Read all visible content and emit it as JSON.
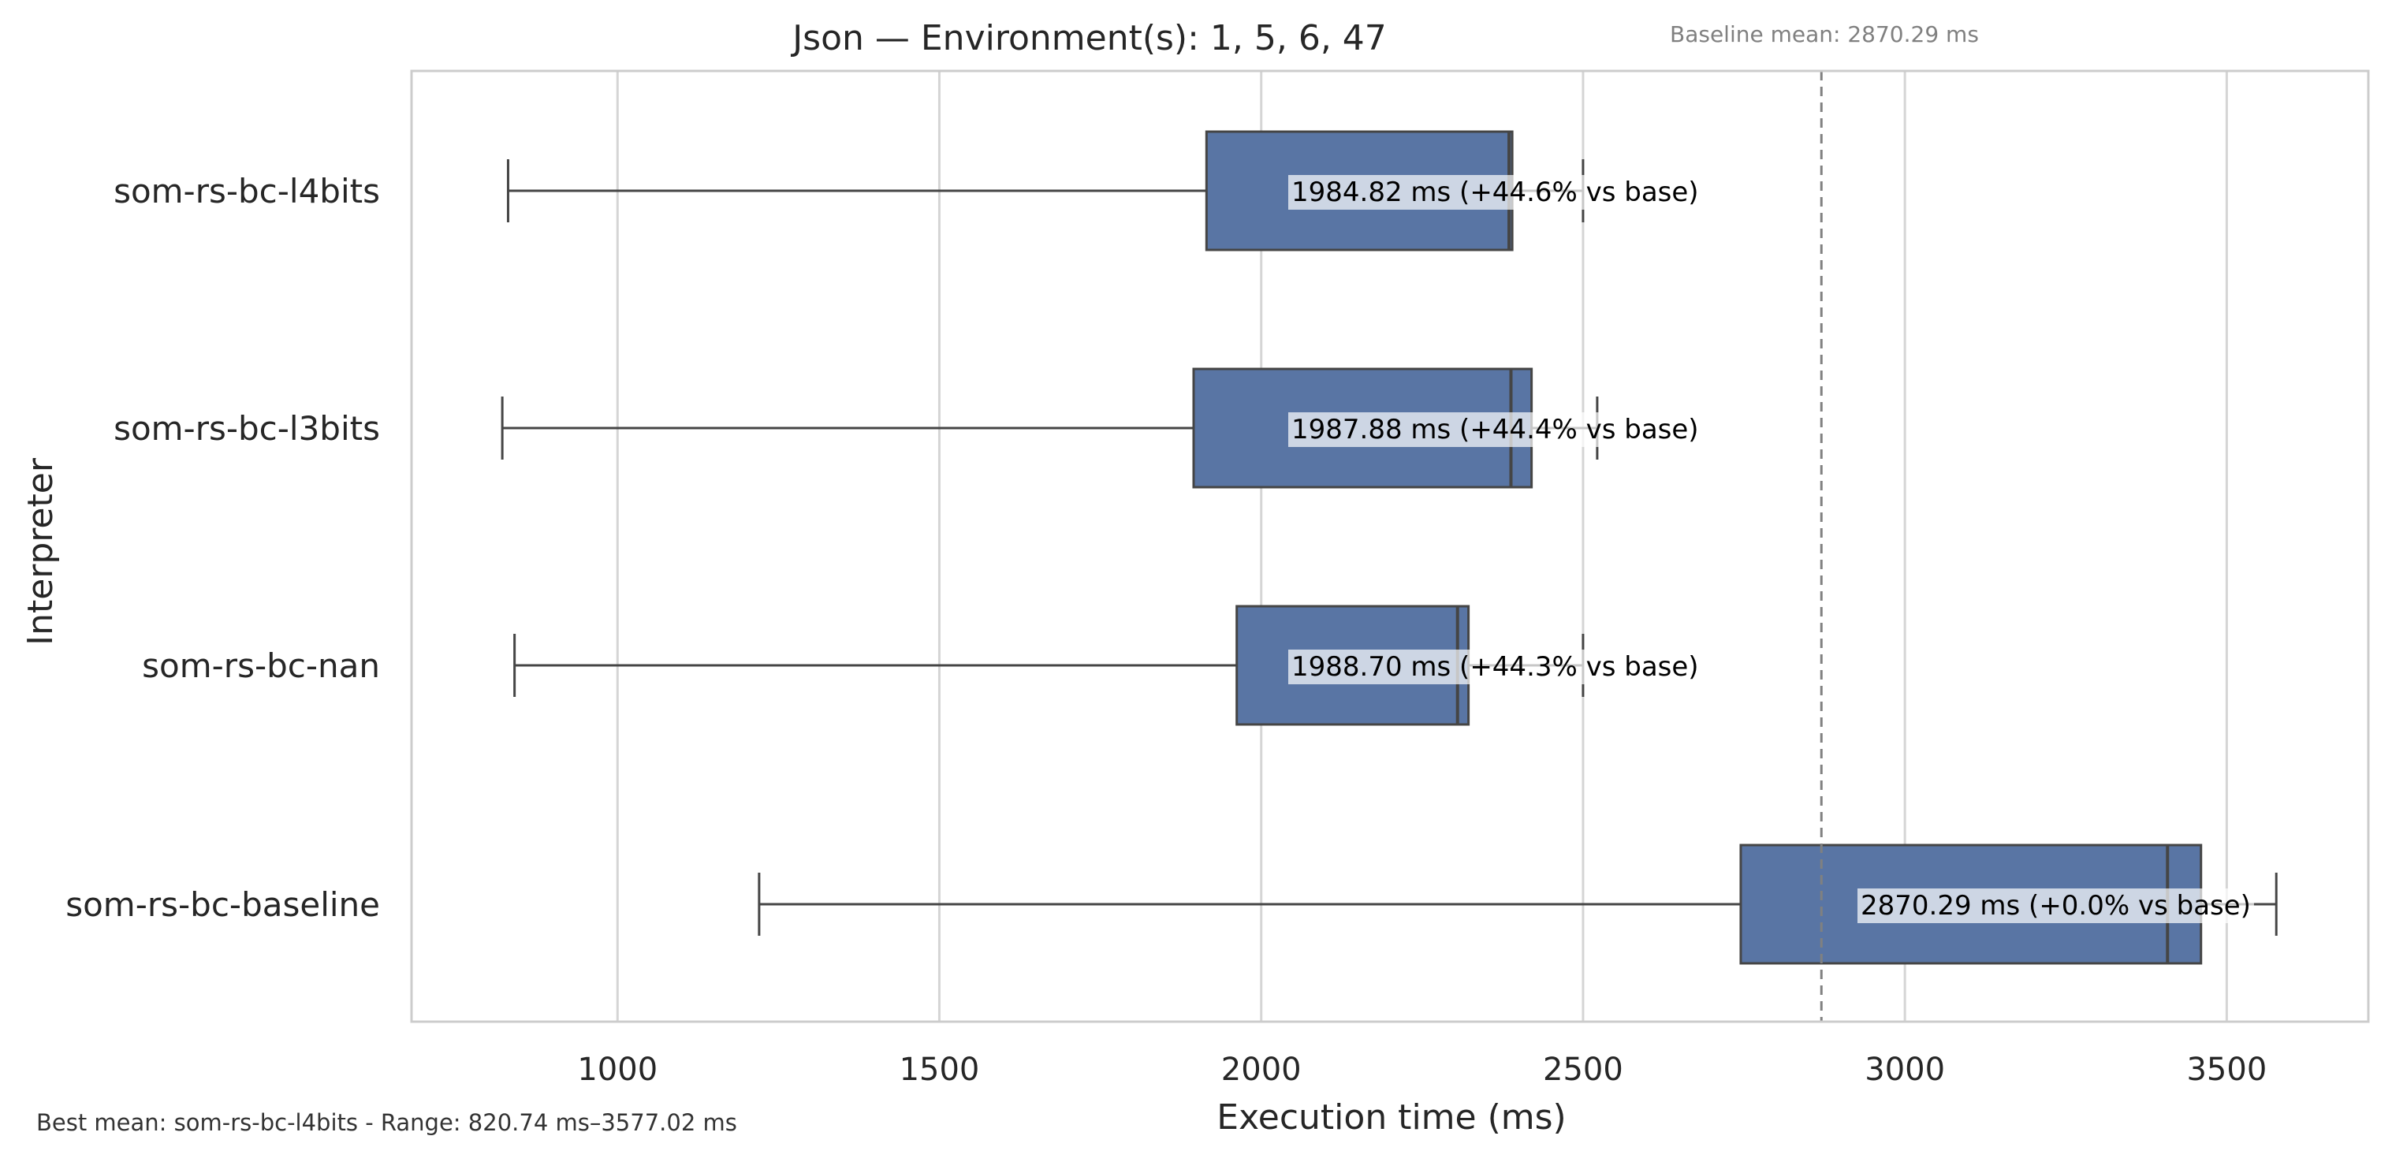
{
  "chart_data": {
    "type": "boxplot",
    "orientation": "horizontal",
    "title": "Json — Environment(s): 1, 5, 6, 47",
    "xlabel": "Execution time (ms)",
    "ylabel": "Interpreter",
    "xlim": [
      680,
      3720
    ],
    "xticks": [
      1000,
      1500,
      2000,
      2500,
      3000,
      3500
    ],
    "grid": "vertical",
    "box_color": "#5975a4",
    "line_color": "#454545",
    "baseline": {
      "value": 2870.29,
      "label": "Baseline mean: 2870.29 ms"
    },
    "footer": "Best mean: som-rs-bc-l4bits - Range: 820.74 ms–3577.02 ms",
    "categories": [
      "som-rs-bc-l4bits",
      "som-rs-bc-l3bits",
      "som-rs-bc-nan",
      "som-rs-bc-baseline"
    ],
    "series": [
      {
        "name": "som-rs-bc-l4bits",
        "whisker_low": 830,
        "q1": 1915,
        "median": 2385,
        "q3": 2390,
        "whisker_high": 2500,
        "annotation": "1984.82 ms  (+44.6% vs base)"
      },
      {
        "name": "som-rs-bc-l3bits",
        "whisker_low": 821,
        "q1": 1895,
        "median": 2388,
        "q3": 2420,
        "whisker_high": 2522,
        "annotation": "1987.88 ms  (+44.4% vs base)"
      },
      {
        "name": "som-rs-bc-nan",
        "whisker_low": 840,
        "q1": 1962,
        "median": 2305,
        "q3": 2322,
        "whisker_high": 2500,
        "annotation": "1988.70 ms  (+44.3% vs base)"
      },
      {
        "name": "som-rs-bc-baseline",
        "whisker_low": 1220,
        "q1": 2745,
        "median": 3408,
        "q3": 3460,
        "whisker_high": 3577,
        "annotation": "2870.29 ms  (+0.0% vs base)"
      }
    ]
  }
}
